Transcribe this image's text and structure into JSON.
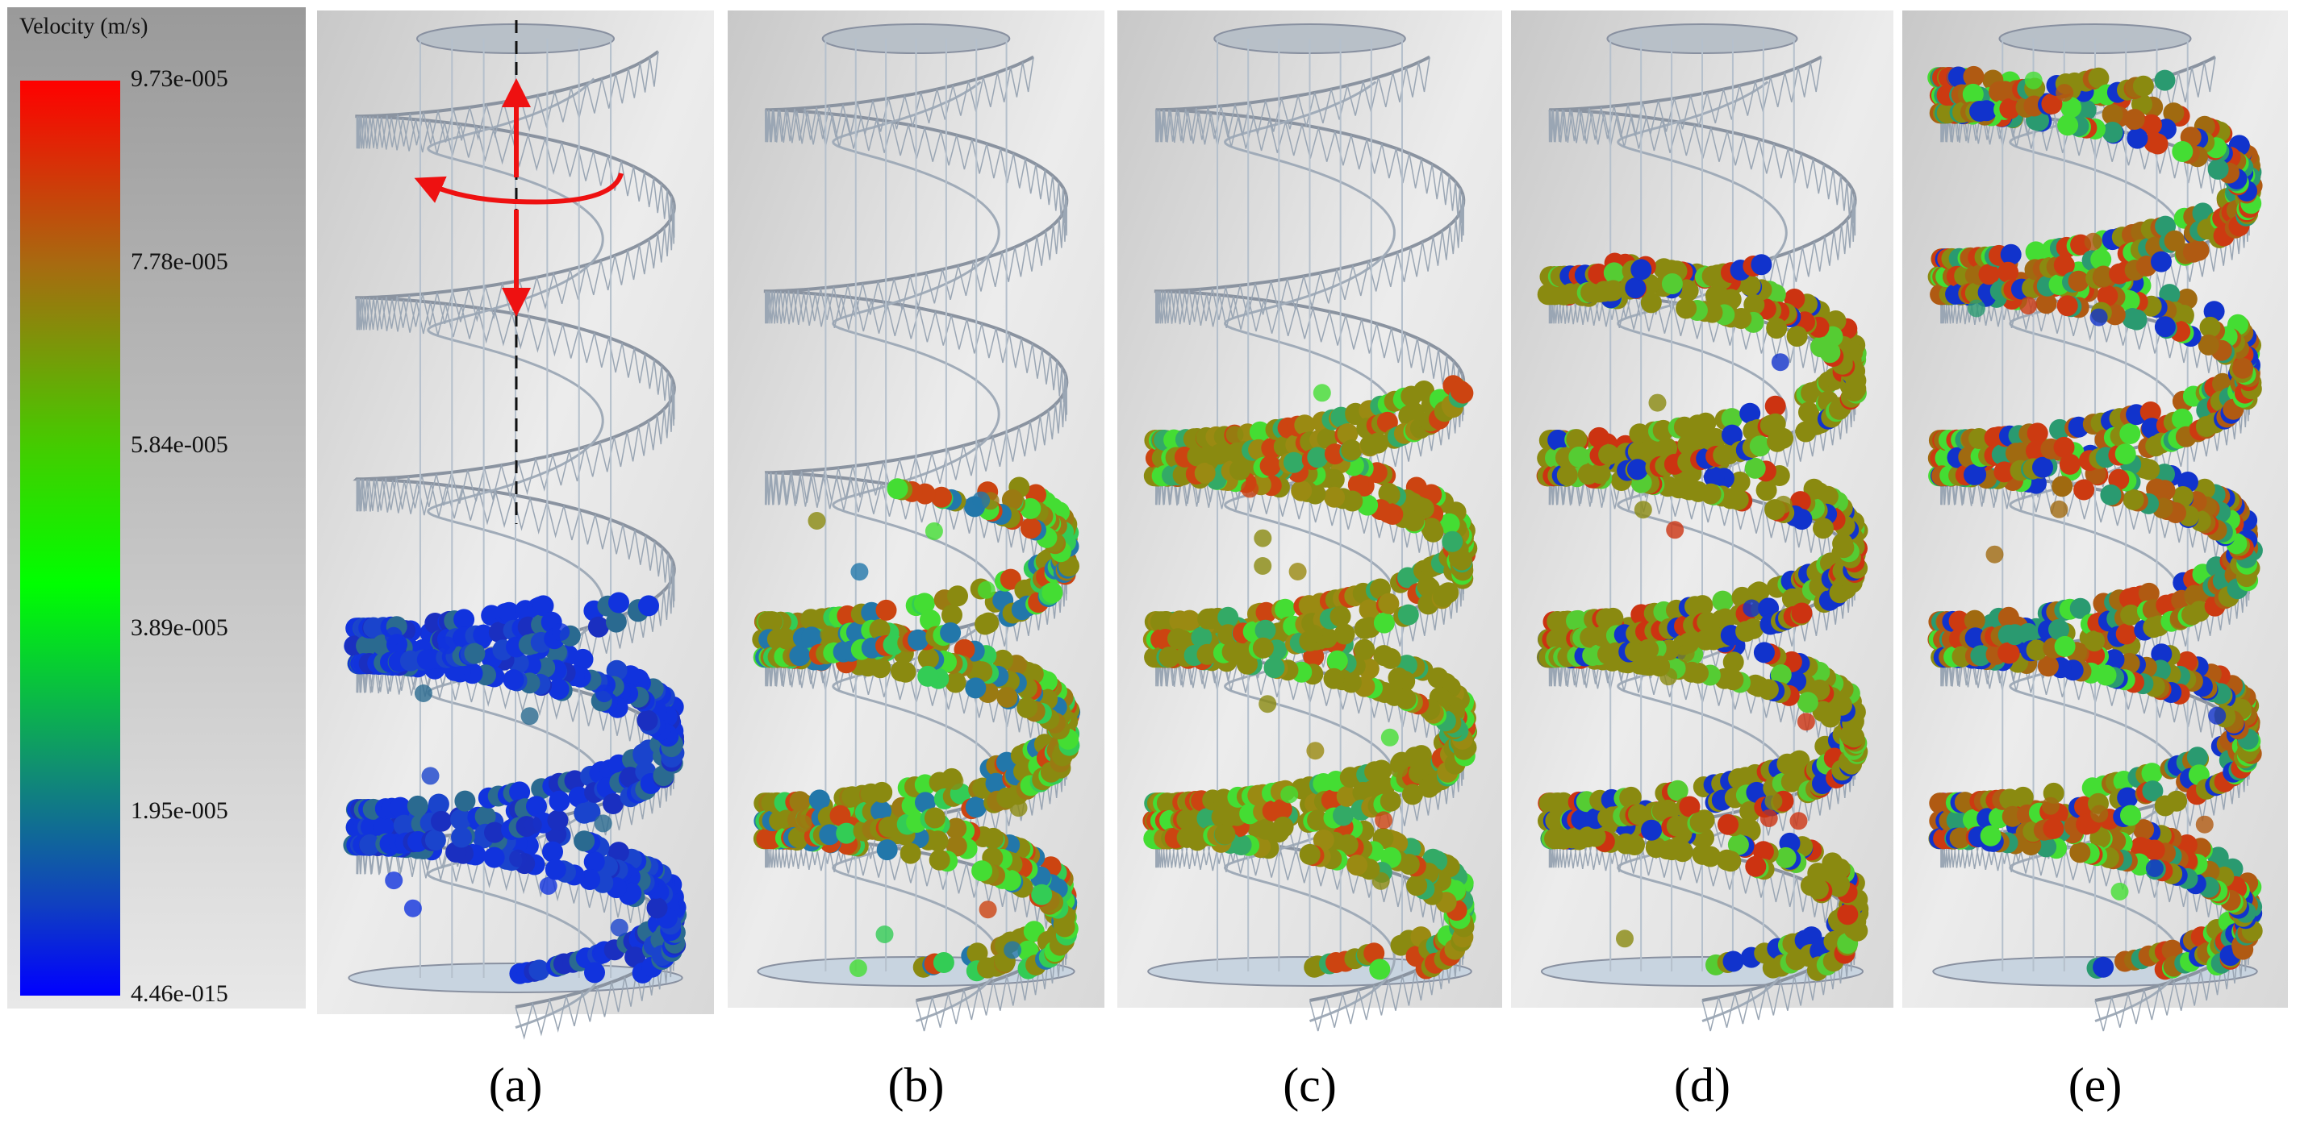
{
  "legend": {
    "title": "Velocity (m/s)",
    "ticks": [
      "9.73e-005",
      "7.78e-005",
      "5.84e-005",
      "3.89e-005",
      "1.95e-005",
      "4.46e-015"
    ]
  },
  "panels": [
    {
      "label": "(a)"
    },
    {
      "label": "(b)"
    },
    {
      "label": "(c)"
    },
    {
      "label": "(d)"
    },
    {
      "label": "(e)"
    }
  ]
}
